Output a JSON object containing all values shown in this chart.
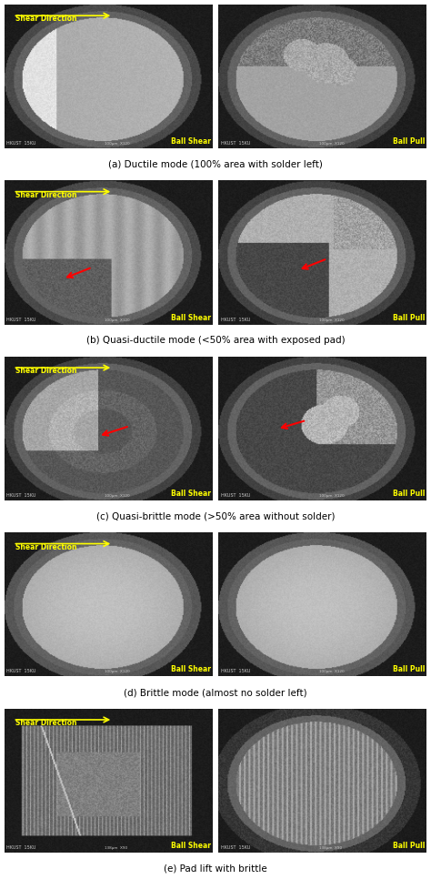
{
  "figsize": [
    4.74,
    9.77
  ],
  "dpi": 100,
  "rows": [
    {
      "label": "(a) Ductile mode (100% area with solder left)",
      "left_caption": "Ball Shear",
      "right_caption": "Ball Pull"
    },
    {
      "label": "(b) Quasi-ductile mode (<50% area with exposed pad)",
      "left_caption": "Ball Shear",
      "right_caption": "Ball Pull"
    },
    {
      "label": "(c) Quasi-brittle mode (>50% area without solder)",
      "left_caption": "Ball Shear",
      "right_caption": "Ball Pull"
    },
    {
      "label": "(d) Brittle mode (almost no solder left)",
      "left_caption": "Ball Shear",
      "right_caption": "Ball Pull"
    },
    {
      "label": "(e) Pad lift with brittle",
      "left_caption": "Ball Shear",
      "right_caption": "Ball Pull"
    }
  ]
}
